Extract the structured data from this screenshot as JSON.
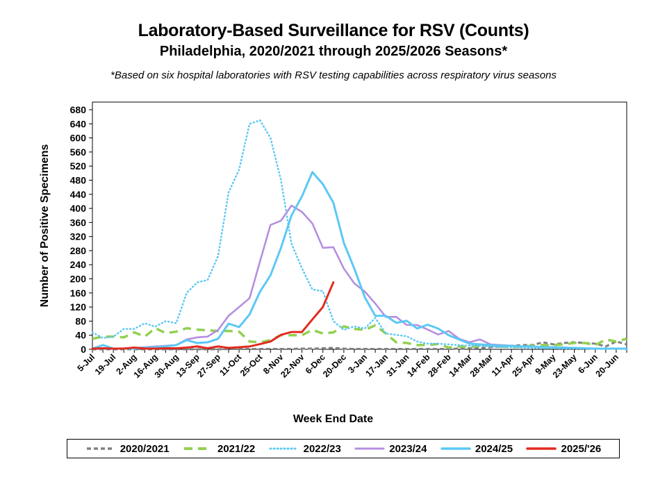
{
  "chart_data": {
    "type": "line",
    "title": "Laboratory-Based Surveillance for RSV (Counts)",
    "subtitle": "Philadelphia, 2020/2021 through 2025/2026 Seasons*",
    "footnote": "*Based on six hospital laboratories with RSV testing capabilities across respiratory virus seasons",
    "xlabel": "Week End Date",
    "ylabel": "Number of Positive Specimens",
    "ylim": [
      0,
      680
    ],
    "yticks": [
      0,
      40,
      80,
      120,
      160,
      200,
      240,
      280,
      320,
      360,
      400,
      440,
      480,
      520,
      560,
      600,
      640,
      680
    ],
    "weeks": 52,
    "xtick_labels": [
      "5-Jul",
      "19-Jul",
      "2-Aug",
      "16-Aug",
      "30-Aug",
      "13-Sep",
      "27-Sep",
      "11-Oct",
      "25-Oct",
      "8-Nov",
      "22-Nov",
      "6-Dec",
      "20-Dec",
      "3-Jan",
      "17-Jan",
      "31-Jan",
      "14-Feb",
      "28-Feb",
      "14-Mar",
      "28-Mar",
      "11-Apr",
      "25-Apr",
      "9-May",
      "23-May",
      "6-Jun",
      "20-Jun"
    ],
    "xtick_label_every": 2,
    "grid": false,
    "legend_position": "bottom",
    "series": [
      {
        "name": "2020/2021",
        "color": "#808080",
        "style": "dash-short",
        "values": [
          0,
          0,
          0,
          0,
          0,
          0,
          0,
          0,
          0,
          0,
          0,
          0,
          0,
          1,
          1,
          1,
          1,
          1,
          1,
          1,
          2,
          2,
          3,
          4,
          2,
          1,
          1,
          1,
          1,
          1,
          1,
          1,
          1,
          1,
          1,
          2,
          3,
          4,
          6,
          8,
          10,
          12,
          12,
          20,
          14,
          18,
          20,
          18,
          16,
          8,
          22,
          14
        ]
      },
      {
        "name": "2021/22",
        "color": "#92D050",
        "style": "dash-long",
        "values": [
          30,
          36,
          36,
          34,
          48,
          36,
          60,
          46,
          50,
          60,
          56,
          54,
          52,
          52,
          50,
          22,
          20,
          26,
          40,
          40,
          40,
          55,
          45,
          48,
          65,
          58,
          55,
          68,
          45,
          20,
          18,
          12,
          12,
          15,
          5,
          8,
          6,
          10,
          12,
          8,
          6,
          8,
          10,
          12,
          12,
          14,
          18,
          18,
          12,
          28,
          22,
          30
        ]
      },
      {
        "name": "2022/23",
        "color": "#5BC8F5",
        "style": "dot",
        "values": [
          48,
          32,
          36,
          58,
          58,
          74,
          64,
          80,
          74,
          160,
          190,
          197,
          265,
          445,
          510,
          640,
          650,
          600,
          480,
          300,
          230,
          170,
          165,
          80,
          55,
          65,
          59,
          89,
          45,
          41,
          37,
          22,
          16,
          16,
          14,
          12,
          10,
          10,
          8,
          6,
          6,
          5,
          4,
          3,
          3,
          2,
          2,
          2,
          1,
          1,
          1,
          1
        ]
      },
      {
        "name": "2023/24",
        "color": "#B58FE0",
        "style": "solid",
        "values": [
          2,
          2,
          2,
          3,
          4,
          6,
          8,
          10,
          12,
          28,
          34,
          36,
          55,
          95,
          120,
          145,
          250,
          353,
          365,
          408,
          390,
          357,
          288,
          290,
          229,
          187,
          164,
          130,
          92,
          92,
          69,
          69,
          56,
          42,
          52,
          30,
          20,
          28,
          14,
          12,
          10,
          8,
          8,
          6,
          6,
          5,
          4,
          3,
          2,
          2,
          2,
          1
        ]
      },
      {
        "name": "2024/25",
        "color": "#5BC8F5",
        "style": "solid-thick",
        "values": [
          2,
          12,
          2,
          2,
          2,
          4,
          6,
          8,
          12,
          26,
          18,
          20,
          30,
          73,
          63,
          99,
          164,
          210,
          288,
          380,
          434,
          503,
          469,
          416,
          302,
          229,
          148,
          95,
          95,
          75,
          81,
          59,
          70,
          59,
          40,
          28,
          16,
          14,
          12,
          10,
          10,
          8,
          8,
          6,
          6,
          5,
          4,
          3,
          2,
          2,
          2,
          2
        ]
      },
      {
        "name": "2025/'26",
        "color": "#E02B1F",
        "style": "solid-red",
        "values": [
          2,
          3,
          2,
          2,
          5,
          2,
          2,
          3,
          3,
          5,
          8,
          3,
          8,
          4,
          6,
          8,
          15,
          22,
          41,
          49,
          49,
          85,
          120,
          190
        ]
      }
    ]
  }
}
